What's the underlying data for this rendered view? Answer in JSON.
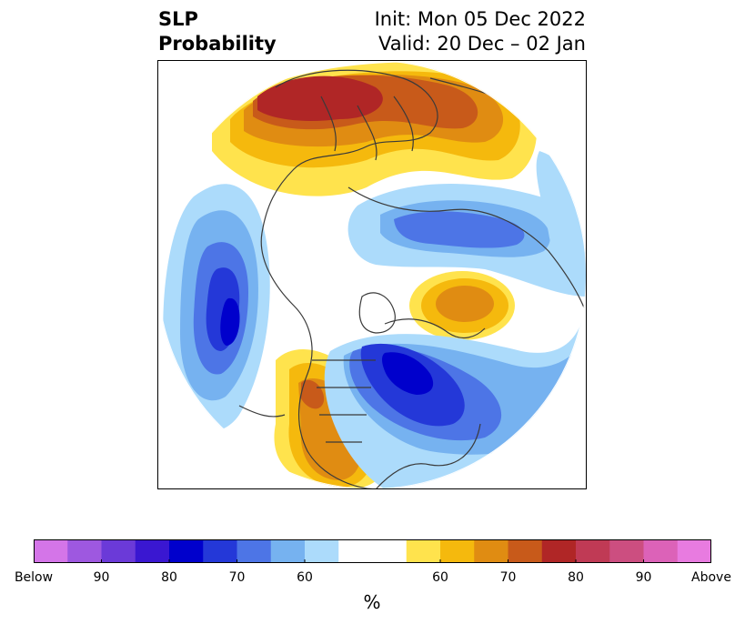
{
  "title": {
    "left_line1": "SLP",
    "left_line2": "Probability",
    "right_line1": "Init: Mon 05 Dec 2022",
    "right_line2": "Valid: 20 Dec – 02 Jan"
  },
  "colorbar": {
    "unit": "%",
    "colors": [
      "#d475e8",
      "#9e58e0",
      "#6b3ad8",
      "#3a17d1",
      "#0000cc",
      "#2438d8",
      "#4d75e6",
      "#76b2f0",
      "#acdbfb",
      "#ffffff",
      "#ffffff",
      "#ffe34d",
      "#f5b90d",
      "#e08c12",
      "#c85a1a",
      "#b02626",
      "#c03a55",
      "#cc4e80",
      "#dc62b8",
      "#e87be0"
    ],
    "ticks": [
      {
        "label": "Below",
        "frac": 0.0
      },
      {
        "label": "90",
        "frac": 0.1
      },
      {
        "label": "80",
        "frac": 0.2
      },
      {
        "label": "70",
        "frac": 0.3
      },
      {
        "label": "60",
        "frac": 0.4
      },
      {
        "label": "60",
        "frac": 0.6
      },
      {
        "label": "70",
        "frac": 0.7
      },
      {
        "label": "80",
        "frac": 0.8
      },
      {
        "label": "90",
        "frac": 0.9
      },
      {
        "label": "Above",
        "frac": 1.0
      }
    ]
  },
  "map": {
    "colors": {
      "below_light": "#acdbfb",
      "below_med": "#76b2f0",
      "below_blue": "#4d75e6",
      "below_dark": "#2438d8",
      "below_core": "#0000cc",
      "above_yellow": "#ffe34d",
      "above_gold": "#f5b90d",
      "above_orange": "#e08c12",
      "above_rust": "#c85a1a",
      "above_red": "#b02626",
      "coastline": "#3a3a3a"
    }
  }
}
